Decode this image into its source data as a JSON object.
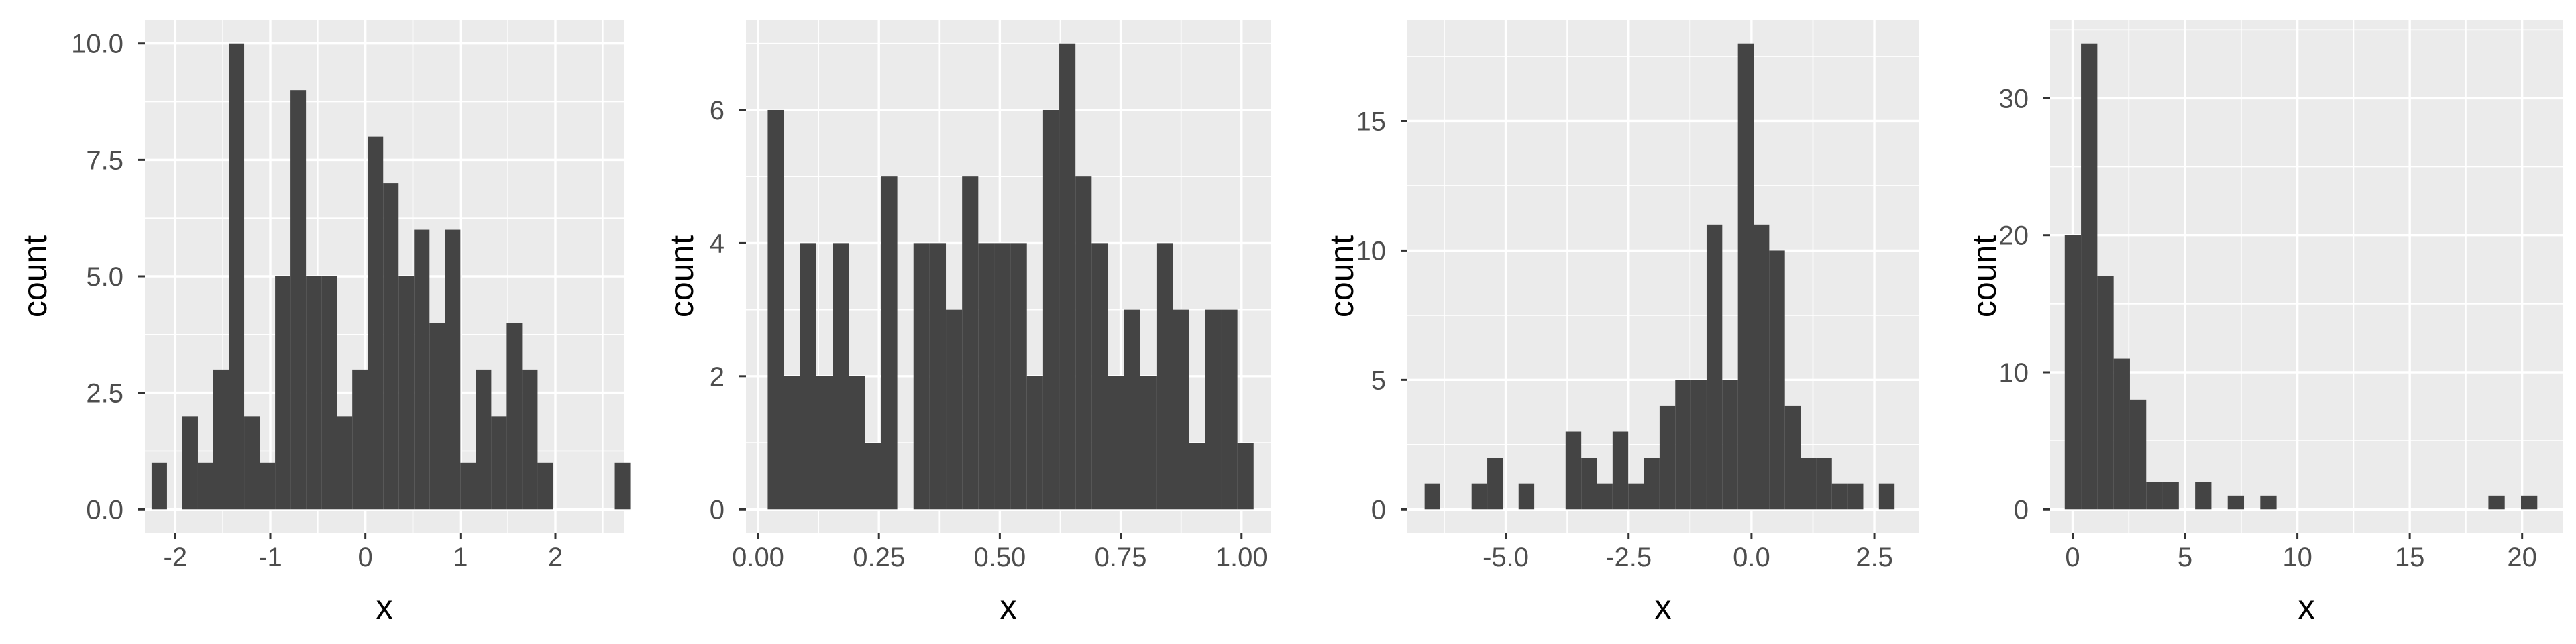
{
  "chart_data": [
    {
      "type": "histogram",
      "xlabel": "x",
      "ylabel": "count",
      "xlim": [
        -2.32,
        2.72
      ],
      "ylim": [
        -0.5,
        10.5
      ],
      "x_ticks": [
        {
          "value": -2,
          "label": "-2"
        },
        {
          "value": -1,
          "label": "-1"
        },
        {
          "value": 0,
          "label": "0"
        },
        {
          "value": 1,
          "label": "1"
        },
        {
          "value": 2,
          "label": "2"
        }
      ],
      "y_ticks": [
        {
          "value": 0,
          "label": "0.0"
        },
        {
          "value": 2.5,
          "label": "2.5"
        },
        {
          "value": 5,
          "label": "5.0"
        },
        {
          "value": 7.5,
          "label": "7.5"
        },
        {
          "value": 10,
          "label": "10.0"
        }
      ],
      "bins": {
        "start": -2.25,
        "width": 0.1625,
        "counts": [
          1,
          0,
          2,
          1,
          3,
          10,
          2,
          1,
          5,
          9,
          5,
          5,
          2,
          3,
          8,
          7,
          5,
          6,
          4,
          6,
          1,
          3,
          2,
          4,
          3,
          1,
          0,
          0,
          0,
          0,
          1
        ]
      }
    },
    {
      "type": "histogram",
      "xlabel": "x",
      "ylabel": "count",
      "xlim": [
        -0.025,
        1.06
      ],
      "ylim": [
        -0.35,
        7.35
      ],
      "x_ticks": [
        {
          "value": 0,
          "label": "0.00"
        },
        {
          "value": 0.25,
          "label": "0.25"
        },
        {
          "value": 0.5,
          "label": "0.50"
        },
        {
          "value": 0.75,
          "label": "0.75"
        },
        {
          "value": 1,
          "label": "1.00"
        }
      ],
      "y_ticks": [
        {
          "value": 0,
          "label": "0"
        },
        {
          "value": 2,
          "label": "2"
        },
        {
          "value": 4,
          "label": "4"
        },
        {
          "value": 6,
          "label": "6"
        }
      ],
      "bins": {
        "start": 0.02,
        "width": 0.0335,
        "counts": [
          6,
          2,
          4,
          2,
          4,
          2,
          1,
          5,
          0,
          4,
          4,
          3,
          5,
          4,
          4,
          4,
          2,
          6,
          7,
          5,
          4,
          2,
          3,
          2,
          4,
          3,
          1,
          3,
          3,
          1
        ]
      }
    },
    {
      "type": "histogram",
      "xlabel": "x",
      "ylabel": "count",
      "xlim": [
        -7.0,
        3.4
      ],
      "ylim": [
        -0.9,
        18.9
      ],
      "x_ticks": [
        {
          "value": -5,
          "label": "-5.0"
        },
        {
          "value": -2.5,
          "label": "-2.5"
        },
        {
          "value": 0,
          "label": "0.0"
        },
        {
          "value": 2.5,
          "label": "2.5"
        }
      ],
      "y_ticks": [
        {
          "value": 0,
          "label": "0"
        },
        {
          "value": 5,
          "label": "5"
        },
        {
          "value": 10,
          "label": "10"
        },
        {
          "value": 15,
          "label": "15"
        }
      ],
      "bins": {
        "start": -6.65,
        "width": 0.3187,
        "counts": [
          1,
          0,
          0,
          1,
          2,
          0,
          1,
          0,
          0,
          3,
          2,
          1,
          3,
          1,
          2,
          4,
          5,
          5,
          11,
          5,
          18,
          11,
          10,
          4,
          2,
          2,
          1,
          1,
          0,
          1
        ]
      }
    },
    {
      "type": "histogram",
      "xlabel": "x",
      "ylabel": "count",
      "xlim": [
        -1.0,
        21.8
      ],
      "ylim": [
        -1.7,
        35.7
      ],
      "x_ticks": [
        {
          "value": 0,
          "label": "0"
        },
        {
          "value": 5,
          "label": "5"
        },
        {
          "value": 10,
          "label": "10"
        },
        {
          "value": 15,
          "label": "15"
        },
        {
          "value": 20,
          "label": "20"
        }
      ],
      "y_ticks": [
        {
          "value": 0,
          "label": "0"
        },
        {
          "value": 10,
          "label": "10"
        },
        {
          "value": 20,
          "label": "20"
        },
        {
          "value": 30,
          "label": "30"
        }
      ],
      "bins": {
        "start": -0.35,
        "width": 0.725,
        "counts": [
          20,
          34,
          17,
          11,
          8,
          2,
          2,
          0,
          2,
          0,
          1,
          0,
          1,
          0,
          0,
          0,
          0,
          0,
          0,
          0,
          0,
          0,
          0,
          0,
          0,
          0,
          1,
          0,
          1
        ]
      }
    }
  ]
}
